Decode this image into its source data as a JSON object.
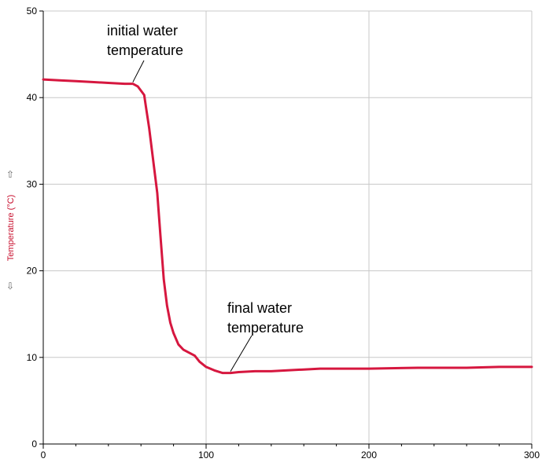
{
  "chart_data": {
    "type": "line",
    "title": "",
    "xlabel": "",
    "ylabel": "Temperature (°C)",
    "xlim": [
      0,
      300
    ],
    "ylim": [
      0,
      50
    ],
    "x_ticks": [
      0,
      100,
      200,
      300
    ],
    "y_ticks": [
      0,
      10,
      20,
      30,
      40,
      50
    ],
    "x_minor_step": 20,
    "grid": true,
    "series": [
      {
        "color": "#d6173f",
        "points": [
          [
            0,
            42.1
          ],
          [
            10,
            42.0
          ],
          [
            20,
            41.9
          ],
          [
            30,
            41.8
          ],
          [
            40,
            41.7
          ],
          [
            50,
            41.6
          ],
          [
            55,
            41.6
          ],
          [
            58,
            41.3
          ],
          [
            60,
            40.8
          ],
          [
            62,
            40.3
          ],
          [
            63,
            39.0
          ],
          [
            65,
            36.5
          ],
          [
            67,
            33.5
          ],
          [
            70,
            29.0
          ],
          [
            72,
            24.0
          ],
          [
            74,
            19.0
          ],
          [
            76,
            16.0
          ],
          [
            78,
            14.0
          ],
          [
            80,
            12.8
          ],
          [
            83,
            11.5
          ],
          [
            86,
            10.9
          ],
          [
            90,
            10.5
          ],
          [
            93,
            10.2
          ],
          [
            96,
            9.5
          ],
          [
            100,
            8.9
          ],
          [
            105,
            8.5
          ],
          [
            110,
            8.2
          ],
          [
            115,
            8.2
          ],
          [
            120,
            8.3
          ],
          [
            130,
            8.4
          ],
          [
            140,
            8.4
          ],
          [
            150,
            8.5
          ],
          [
            160,
            8.6
          ],
          [
            170,
            8.7
          ],
          [
            180,
            8.7
          ],
          [
            200,
            8.7
          ],
          [
            230,
            8.8
          ],
          [
            260,
            8.8
          ],
          [
            280,
            8.9
          ],
          [
            300,
            8.9
          ]
        ]
      }
    ],
    "annotations": [
      {
        "lines": [
          "initial water",
          "temperature"
        ],
        "target": [
          55,
          41.6
        ]
      },
      {
        "lines": [
          "final water",
          "temperature"
        ],
        "target": [
          115,
          8.2
        ]
      }
    ]
  },
  "axis_arrows": {
    "up": "⇧",
    "down": "⇩"
  },
  "colors": {
    "series": "#d6173f",
    "grid": "#c8c8c8",
    "axis": "#000000",
    "ylabel": "#c8102e"
  }
}
